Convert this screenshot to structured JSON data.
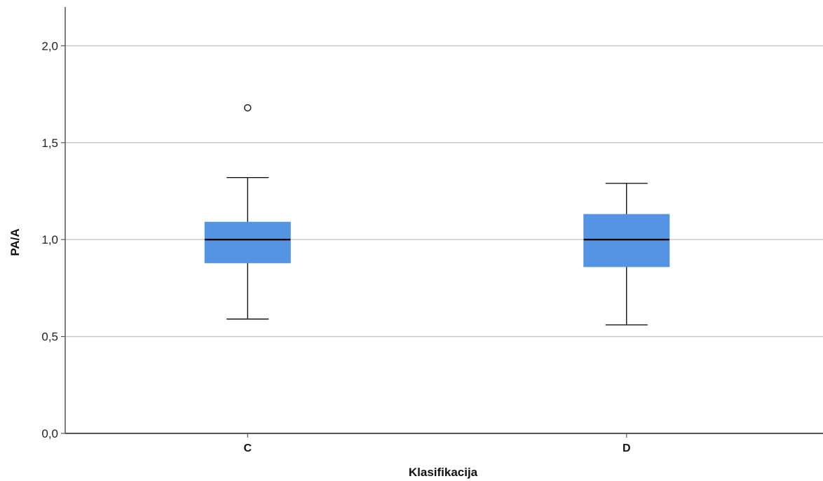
{
  "chart_data": {
    "type": "box",
    "xlabel": "Klasifikacija",
    "ylabel": "PA/A",
    "ylim": [
      0,
      2.2
    ],
    "yticks": [
      0.0,
      0.5,
      1.0,
      1.5,
      2.0
    ],
    "ytick_labels": [
      "0,0",
      "0,5",
      "1,0",
      "1,5",
      "2,0"
    ],
    "grid": true,
    "categories": [
      "C",
      "D"
    ],
    "boxes": [
      {
        "category": "C",
        "whisker_low": 0.59,
        "q1": 0.88,
        "median": 1.0,
        "q3": 1.09,
        "whisker_high": 1.32,
        "outliers": [
          1.68
        ]
      },
      {
        "category": "D",
        "whisker_low": 0.56,
        "q1": 0.86,
        "median": 1.0,
        "q3": 1.13,
        "whisker_high": 1.29,
        "outliers": []
      }
    ],
    "colors": {
      "box_fill": "#5494E2",
      "grid": "#c8c8c8",
      "axis": "#555555",
      "median": "#000000"
    }
  }
}
